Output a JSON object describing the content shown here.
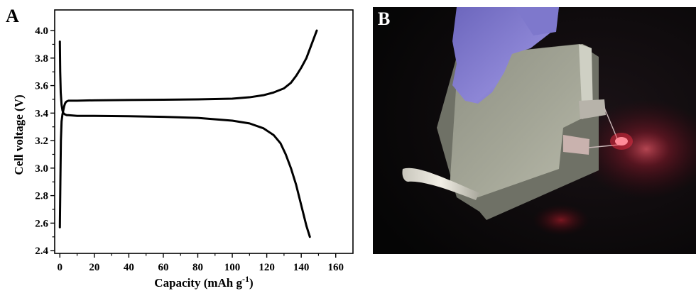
{
  "panel_a": {
    "letter": "A"
  },
  "panel_b": {
    "letter": "B",
    "content": "photo-flexible-battery-lighting-red-led"
  },
  "colors": {
    "curve": "#000000",
    "axes": "#000000",
    "photo_background": "#070606",
    "led_glow": "#ff2a3c",
    "glove": "#7c74c8",
    "film": "#9d9f8f"
  },
  "chart_data": {
    "type": "line",
    "title": "",
    "xlabel": "Capacity (mAh g",
    "xlabel_superscript": "-1",
    "xlabel_end": ")",
    "ylabel": "Cell voltage (V)",
    "xlim": [
      -3,
      170
    ],
    "ylim": [
      2.38,
      4.15
    ],
    "xticks": [
      0,
      20,
      40,
      60,
      80,
      100,
      120,
      140,
      160
    ],
    "yticks": [
      2.4,
      2.6,
      2.8,
      3.0,
      3.2,
      3.4,
      3.6,
      3.8,
      4.0
    ],
    "ytick_labels": [
      "2.4",
      "2.6",
      "2.8",
      "3.0",
      "3.2",
      "3.4",
      "3.6",
      "3.8",
      "4.0"
    ],
    "grid": false,
    "series": [
      {
        "x": [
          0,
          0.3,
          0.6,
          1.0,
          1.5,
          2.0,
          2.5,
          3.0,
          3.5,
          4.0,
          5,
          10,
          20,
          40,
          60,
          80,
          100,
          110,
          118,
          124,
          130,
          134,
          137,
          140,
          143,
          146,
          149
        ],
        "y": [
          2.57,
          2.9,
          3.2,
          3.34,
          3.39,
          3.42,
          3.45,
          3.47,
          3.48,
          3.485,
          3.49,
          3.49,
          3.493,
          3.495,
          3.497,
          3.5,
          3.505,
          3.515,
          3.53,
          3.55,
          3.58,
          3.62,
          3.67,
          3.73,
          3.8,
          3.9,
          4.0
        ]
      },
      {
        "x": [
          0,
          0.2,
          0.5,
          1.0,
          1.5,
          2.0,
          3.0,
          4.0,
          5,
          10,
          20,
          40,
          60,
          80,
          100,
          110,
          118,
          124,
          128,
          131,
          134,
          137,
          139,
          141,
          143,
          145
        ],
        "y": [
          3.92,
          3.7,
          3.55,
          3.46,
          3.42,
          3.4,
          3.39,
          3.385,
          3.385,
          3.38,
          3.38,
          3.377,
          3.373,
          3.365,
          3.345,
          3.325,
          3.29,
          3.24,
          3.18,
          3.1,
          3.0,
          2.88,
          2.78,
          2.68,
          2.58,
          2.5
        ]
      }
    ]
  }
}
